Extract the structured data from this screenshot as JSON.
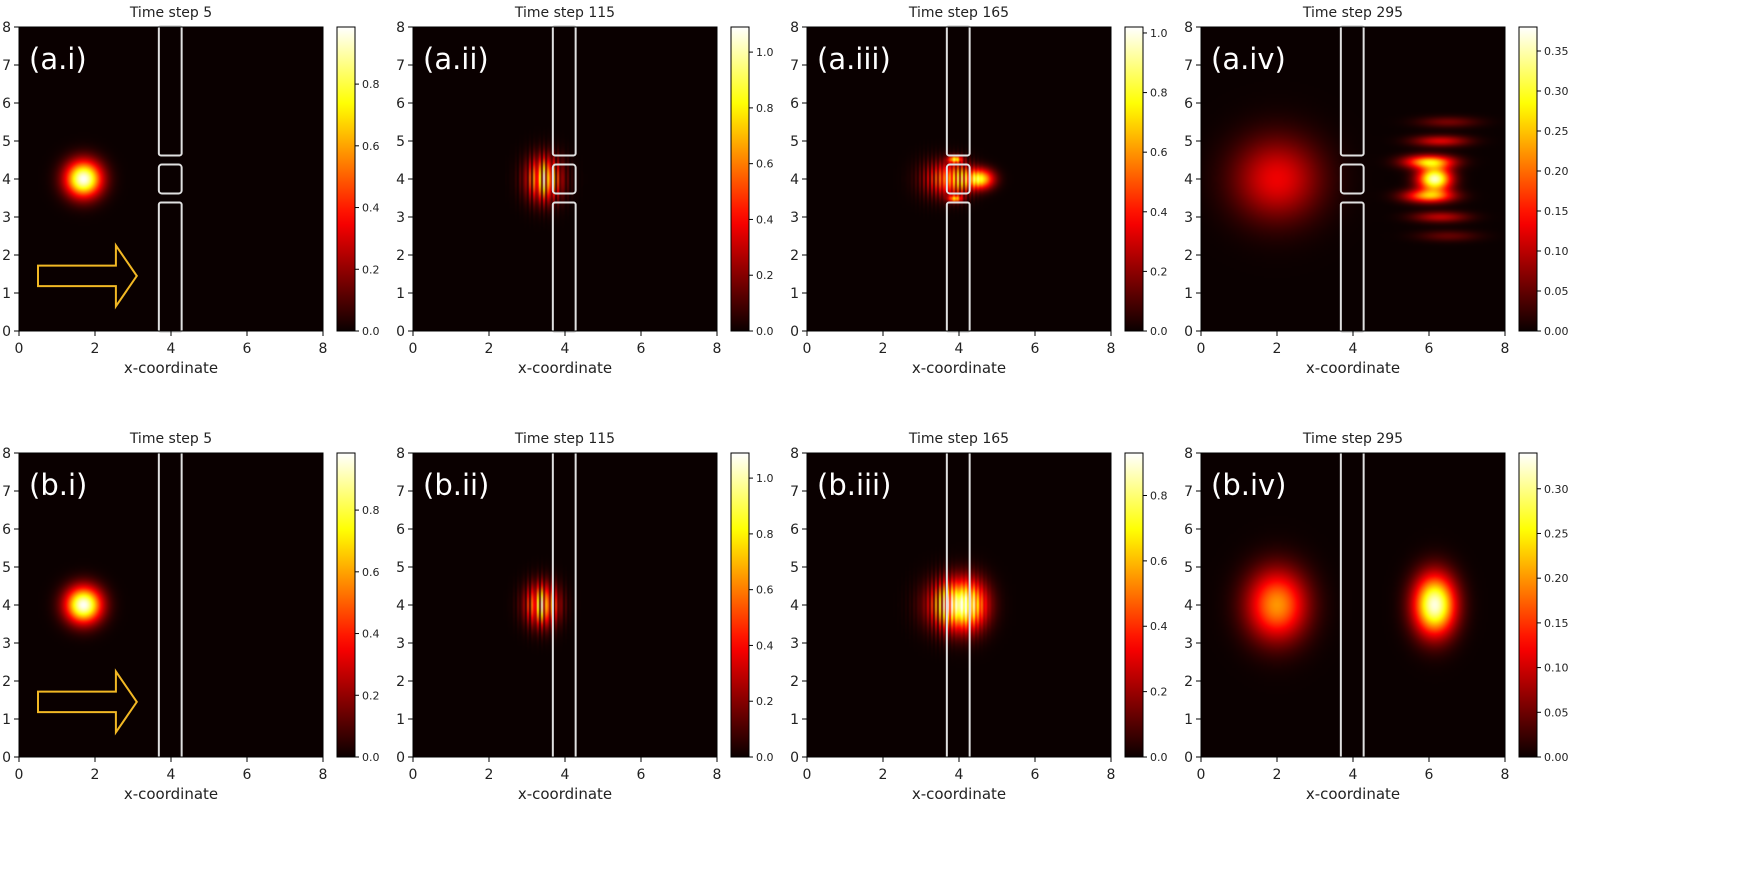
{
  "figure": {
    "panels": [
      {
        "label": "(a.i)",
        "title": "Time step 5",
        "xlabel": "x-coordinate",
        "x_ticks": [
          "0",
          "2",
          "4",
          "6",
          "8"
        ],
        "y_ticks": [
          "0",
          "1",
          "2",
          "3",
          "4",
          "5",
          "6",
          "7",
          "8"
        ],
        "colorbar_ticks": [
          {
            "value": 0.0,
            "label": "0.0"
          },
          {
            "value": 0.2,
            "label": "0.2"
          },
          {
            "value": 0.4,
            "label": "0.4"
          },
          {
            "value": 0.6,
            "label": "0.6"
          },
          {
            "value": 0.8,
            "label": "0.8"
          }
        ],
        "colorbar_max": 0.985,
        "barrier": "double-slit",
        "arrow": true
      },
      {
        "label": "(a.ii)",
        "title": "Time step 115",
        "xlabel": "x-coordinate",
        "x_ticks": [
          "0",
          "2",
          "4",
          "6",
          "8"
        ],
        "y_ticks": [
          "0",
          "1",
          "2",
          "3",
          "4",
          "5",
          "6",
          "7",
          "8"
        ],
        "colorbar_ticks": [
          {
            "value": 0.0,
            "label": "0.0"
          },
          {
            "value": 0.2,
            "label": "0.2"
          },
          {
            "value": 0.4,
            "label": "0.4"
          },
          {
            "value": 0.6,
            "label": "0.6"
          },
          {
            "value": 0.8,
            "label": "0.8"
          },
          {
            "value": 1.0,
            "label": "1.0"
          }
        ],
        "colorbar_max": 1.09,
        "barrier": "double-slit",
        "arrow": false
      },
      {
        "label": "(a.iii)",
        "title": "Time step 165",
        "xlabel": "x-coordinate",
        "x_ticks": [
          "0",
          "2",
          "4",
          "6",
          "8"
        ],
        "y_ticks": [
          "0",
          "1",
          "2",
          "3",
          "4",
          "5",
          "6",
          "7",
          "8"
        ],
        "colorbar_ticks": [
          {
            "value": 0.0,
            "label": "0.0"
          },
          {
            "value": 0.2,
            "label": "0.2"
          },
          {
            "value": 0.4,
            "label": "0.4"
          },
          {
            "value": 0.6,
            "label": "0.6"
          },
          {
            "value": 0.8,
            "label": "0.8"
          },
          {
            "value": 1.0,
            "label": "1.0"
          }
        ],
        "colorbar_max": 1.02,
        "barrier": "double-slit",
        "arrow": false
      },
      {
        "label": "(a.iv)",
        "title": "Time step 295",
        "xlabel": "x-coordinate",
        "x_ticks": [
          "0",
          "2",
          "4",
          "6",
          "8"
        ],
        "y_ticks": [
          "0",
          "1",
          "2",
          "3",
          "4",
          "5",
          "6",
          "7",
          "8"
        ],
        "colorbar_ticks": [
          {
            "value": 0.0,
            "label": "0.00"
          },
          {
            "value": 0.05,
            "label": "0.05"
          },
          {
            "value": 0.1,
            "label": "0.10"
          },
          {
            "value": 0.15,
            "label": "0.15"
          },
          {
            "value": 0.2,
            "label": "0.20"
          },
          {
            "value": 0.25,
            "label": "0.25"
          },
          {
            "value": 0.3,
            "label": "0.30"
          },
          {
            "value": 0.35,
            "label": "0.35"
          }
        ],
        "colorbar_max": 0.38,
        "barrier": "double-slit",
        "arrow": false
      },
      {
        "label": "(b.i)",
        "title": "Time step 5",
        "xlabel": "x-coordinate",
        "x_ticks": [
          "0",
          "2",
          "4",
          "6",
          "8"
        ],
        "y_ticks": [
          "0",
          "1",
          "2",
          "3",
          "4",
          "5",
          "6",
          "7",
          "8"
        ],
        "colorbar_ticks": [
          {
            "value": 0.0,
            "label": "0.0"
          },
          {
            "value": 0.2,
            "label": "0.2"
          },
          {
            "value": 0.4,
            "label": "0.4"
          },
          {
            "value": 0.6,
            "label": "0.6"
          },
          {
            "value": 0.8,
            "label": "0.8"
          }
        ],
        "colorbar_max": 0.985,
        "barrier": "wall",
        "arrow": true
      },
      {
        "label": "(b.ii)",
        "title": "Time step 115",
        "xlabel": "x-coordinate",
        "x_ticks": [
          "0",
          "2",
          "4",
          "6",
          "8"
        ],
        "y_ticks": [
          "0",
          "1",
          "2",
          "3",
          "4",
          "5",
          "6",
          "7",
          "8"
        ],
        "colorbar_ticks": [
          {
            "value": 0.0,
            "label": "0.0"
          },
          {
            "value": 0.2,
            "label": "0.2"
          },
          {
            "value": 0.4,
            "label": "0.4"
          },
          {
            "value": 0.6,
            "label": "0.6"
          },
          {
            "value": 0.8,
            "label": "0.8"
          },
          {
            "value": 1.0,
            "label": "1.0"
          }
        ],
        "colorbar_max": 1.09,
        "barrier": "wall",
        "arrow": false
      },
      {
        "label": "(b.iii)",
        "title": "Time step 165",
        "xlabel": "x-coordinate",
        "x_ticks": [
          "0",
          "2",
          "4",
          "6",
          "8"
        ],
        "y_ticks": [
          "0",
          "1",
          "2",
          "3",
          "4",
          "5",
          "6",
          "7",
          "8"
        ],
        "colorbar_ticks": [
          {
            "value": 0.0,
            "label": "0.0"
          },
          {
            "value": 0.2,
            "label": "0.2"
          },
          {
            "value": 0.4,
            "label": "0.4"
          },
          {
            "value": 0.6,
            "label": "0.6"
          },
          {
            "value": 0.8,
            "label": "0.8"
          }
        ],
        "colorbar_max": 0.93,
        "barrier": "wall",
        "arrow": false
      },
      {
        "label": "(b.iv)",
        "title": "Time step 295",
        "xlabel": "x-coordinate",
        "x_ticks": [
          "0",
          "2",
          "4",
          "6",
          "8"
        ],
        "y_ticks": [
          "0",
          "1",
          "2",
          "3",
          "4",
          "5",
          "6",
          "7",
          "8"
        ],
        "colorbar_ticks": [
          {
            "value": 0.0,
            "label": "0.00"
          },
          {
            "value": 0.05,
            "label": "0.05"
          },
          {
            "value": 0.1,
            "label": "0.10"
          },
          {
            "value": 0.15,
            "label": "0.15"
          },
          {
            "value": 0.2,
            "label": "0.20"
          },
          {
            "value": 0.25,
            "label": "0.25"
          },
          {
            "value": 0.3,
            "label": "0.30"
          }
        ],
        "colorbar_max": 0.34,
        "barrier": "wall",
        "arrow": false
      }
    ]
  },
  "chart_data": {
    "type": "heatmap",
    "colormap": "hot",
    "x_range": [
      0,
      8
    ],
    "y_range": [
      0,
      8
    ],
    "arrow_color": "#f2b824",
    "barrier_color": "#e0e0e0",
    "panels": [
      {
        "id": "a.i",
        "blobs": [
          {
            "cx": 1.7,
            "cy": 4.0,
            "sx": 0.33,
            "sy": 0.33,
            "amp": 0.98,
            "fringe_freq": 0
          }
        ]
      },
      {
        "id": "a.ii",
        "blobs": [
          {
            "cx": 3.45,
            "cy": 4.0,
            "sx": 0.32,
            "sy": 0.4,
            "amp": 1.05,
            "fringe_freq": 8
          }
        ]
      },
      {
        "id": "a.iii",
        "blobs": [
          {
            "cx": 3.85,
            "cy": 4.0,
            "sx": 0.35,
            "sy": 0.3,
            "amp": 0.9,
            "fringe_freq": 9
          },
          {
            "cx": 4.55,
            "cy": 4.0,
            "sx": 0.25,
            "sy": 0.18,
            "amp": 0.75,
            "fringe_freq": 0
          },
          {
            "cx": 3.9,
            "cy": 4.52,
            "sx": 0.12,
            "sy": 0.06,
            "amp": 0.7,
            "fringe_freq": 0
          },
          {
            "cx": 3.9,
            "cy": 3.48,
            "sx": 0.12,
            "sy": 0.06,
            "amp": 0.6,
            "fringe_freq": 0
          },
          {
            "cx": 3.3,
            "cy": 4.0,
            "sx": 0.35,
            "sy": 0.35,
            "amp": 0.2,
            "fringe_freq": 9
          }
        ]
      },
      {
        "id": "a.iv",
        "blobs": [
          {
            "cx": 2.0,
            "cy": 4.0,
            "sx": 0.8,
            "sy": 0.75,
            "amp": 0.13,
            "fringe_freq": 0
          },
          {
            "cx": 6.15,
            "cy": 4.0,
            "sx": 0.3,
            "sy": 0.22,
            "amp": 0.36,
            "fringe_freq": 0
          },
          {
            "cx": 6.0,
            "cy": 4.45,
            "sx": 0.45,
            "sy": 0.12,
            "amp": 0.25,
            "fringe_freq": 0
          },
          {
            "cx": 6.0,
            "cy": 3.55,
            "sx": 0.45,
            "sy": 0.12,
            "amp": 0.22,
            "fringe_freq": 0
          },
          {
            "cx": 6.3,
            "cy": 5.0,
            "sx": 0.5,
            "sy": 0.1,
            "amp": 0.12,
            "fringe_freq": 0
          },
          {
            "cx": 6.3,
            "cy": 3.0,
            "sx": 0.5,
            "sy": 0.1,
            "amp": 0.1,
            "fringe_freq": 0
          },
          {
            "cx": 6.5,
            "cy": 5.5,
            "sx": 0.55,
            "sy": 0.1,
            "amp": 0.06,
            "fringe_freq": 0
          },
          {
            "cx": 6.5,
            "cy": 2.5,
            "sx": 0.55,
            "sy": 0.1,
            "amp": 0.05,
            "fringe_freq": 0
          }
        ]
      },
      {
        "id": "b.i",
        "blobs": [
          {
            "cx": 1.7,
            "cy": 4.0,
            "sx": 0.33,
            "sy": 0.33,
            "amp": 0.98,
            "fringe_freq": 0
          }
        ]
      },
      {
        "id": "b.ii",
        "blobs": [
          {
            "cx": 3.4,
            "cy": 4.0,
            "sx": 0.3,
            "sy": 0.38,
            "amp": 1.05,
            "fringe_freq": 8
          }
        ]
      },
      {
        "id": "b.iii",
        "blobs": [
          {
            "cx": 3.8,
            "cy": 4.0,
            "sx": 0.45,
            "sy": 0.45,
            "amp": 0.85,
            "fringe_freq": 10
          },
          {
            "cx": 4.25,
            "cy": 4.0,
            "sx": 0.35,
            "sy": 0.45,
            "amp": 0.55,
            "fringe_freq": 0
          }
        ]
      },
      {
        "id": "b.iv",
        "blobs": [
          {
            "cx": 2.0,
            "cy": 4.0,
            "sx": 0.55,
            "sy": 0.65,
            "amp": 0.2,
            "fringe_freq": 0
          },
          {
            "cx": 6.15,
            "cy": 4.0,
            "sx": 0.38,
            "sy": 0.55,
            "amp": 0.33,
            "fringe_freq": 0
          }
        ]
      }
    ]
  }
}
